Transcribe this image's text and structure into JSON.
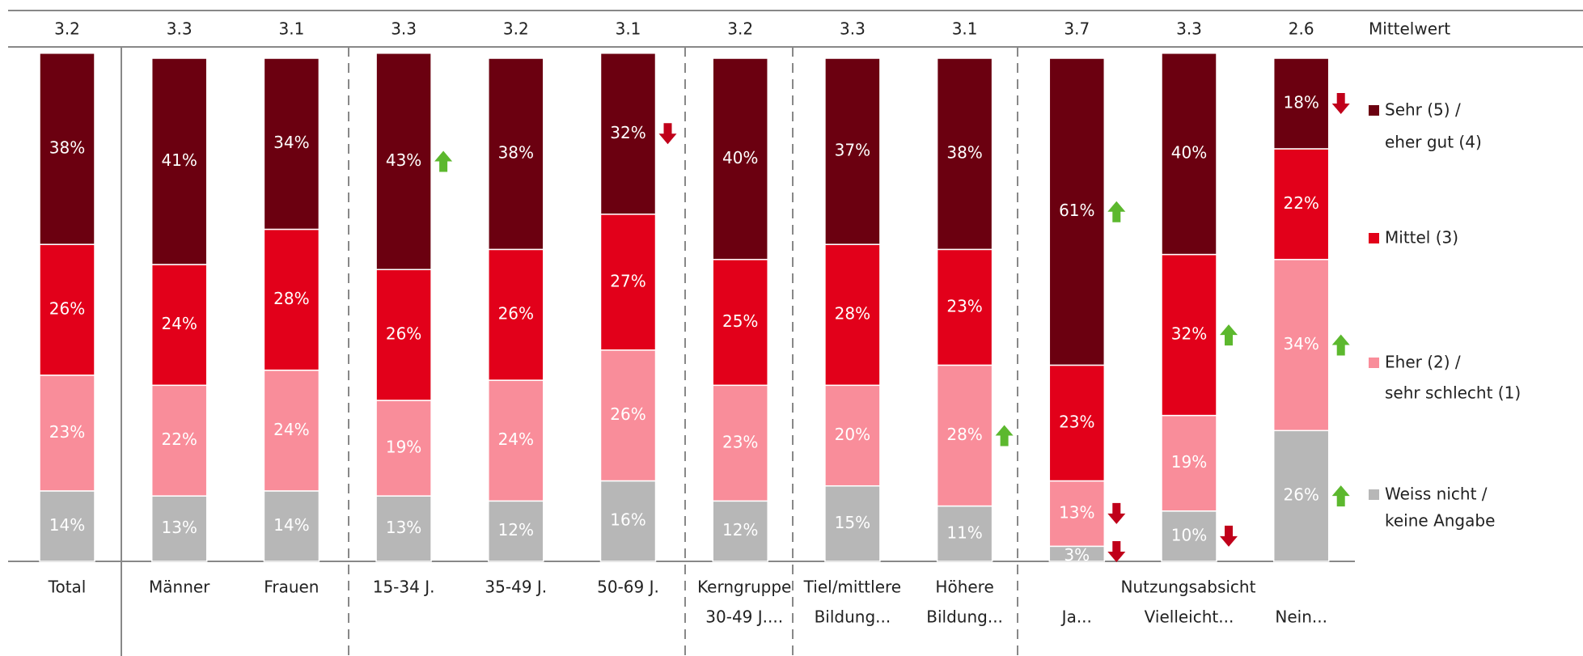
{
  "chart_data": {
    "type": "stacked-bar",
    "mean_label": "Mittelwert",
    "means": [
      3.2,
      3.3,
      3.1,
      3.3,
      3.2,
      3.1,
      3.2,
      3.3,
      3.1,
      3.7,
      3.3,
      2.6
    ],
    "categories": [
      [
        "Total"
      ],
      [
        "Männer"
      ],
      [
        "Frauen"
      ],
      [
        "15-34 J."
      ],
      [
        "35-49 J."
      ],
      [
        "50-69 J."
      ],
      [
        "Kerngruppe",
        "30-49 J...."
      ],
      [
        "Tiel/mittlere",
        "Bildung..."
      ],
      [
        "Höhere",
        "Bildung..."
      ],
      [
        "Ja..."
      ],
      [
        "Vielleicht..."
      ],
      [
        "Nein..."
      ]
    ],
    "group_label": "Nutzungsabsicht",
    "series": [
      {
        "name": [
          "Weiss nicht /",
          "keine Angabe"
        ],
        "color": "#b7b7b7",
        "values": [
          14,
          13,
          14,
          13,
          12,
          16,
          12,
          15,
          11,
          3,
          10,
          26
        ],
        "value_labels": [
          "14%",
          "13%",
          "14%",
          "13%",
          "12%",
          "16%",
          "12%",
          "15%",
          "11%",
          "3%",
          "10%",
          "26%"
        ],
        "trends": [
          null,
          null,
          null,
          null,
          null,
          null,
          null,
          null,
          null,
          "down",
          "down",
          "up"
        ]
      },
      {
        "name": [
          "Eher (2) /",
          "sehr schlecht (1)"
        ],
        "color": "#f98d9a",
        "values": [
          23,
          22,
          24,
          19,
          24,
          26,
          23,
          20,
          28,
          13,
          19,
          34
        ],
        "value_labels": [
          "23%",
          "22%",
          "24%",
          "19%",
          "24%",
          "26%",
          "23%",
          "20%",
          "28%",
          "13%",
          "19%",
          "34%"
        ],
        "trends": [
          null,
          null,
          null,
          null,
          null,
          null,
          null,
          null,
          "up",
          "down",
          null,
          "up"
        ]
      },
      {
        "name": [
          "Mittel (3)"
        ],
        "color": "#e2001a",
        "values": [
          26,
          24,
          28,
          26,
          26,
          27,
          25,
          28,
          23,
          23,
          32,
          22
        ],
        "value_labels": [
          "26%",
          "24%",
          "28%",
          "26%",
          "26%",
          "27%",
          "25%",
          "28%",
          "23%",
          "23%",
          "32%",
          "22%"
        ],
        "trends": [
          null,
          null,
          null,
          null,
          null,
          null,
          null,
          null,
          null,
          null,
          "up",
          null
        ]
      },
      {
        "name": [
          "Sehr (5) /",
          "eher gut (4)"
        ],
        "color": "#6b0010",
        "values": [
          38,
          41,
          34,
          43,
          38,
          32,
          40,
          37,
          38,
          61,
          40,
          18
        ],
        "value_labels": [
          "38%",
          "41%",
          "34%",
          "43%",
          "38%",
          "32%",
          "40%",
          "37%",
          "38%",
          "61%",
          "40%",
          "18%"
        ],
        "trends": [
          null,
          null,
          null,
          "up",
          null,
          "down",
          null,
          null,
          null,
          "up",
          null,
          "down"
        ]
      }
    ]
  }
}
